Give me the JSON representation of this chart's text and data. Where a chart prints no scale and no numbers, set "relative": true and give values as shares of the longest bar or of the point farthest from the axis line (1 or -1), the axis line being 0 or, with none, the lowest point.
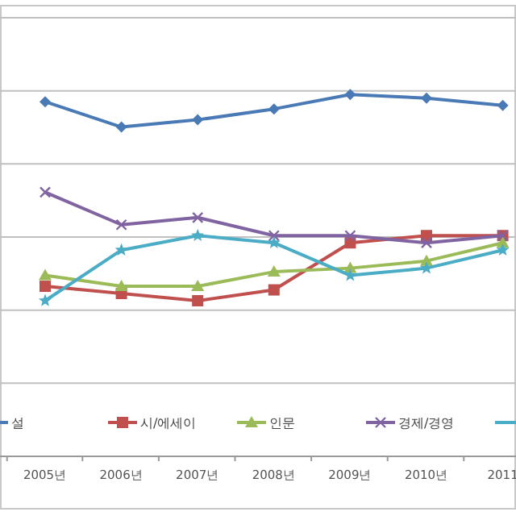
{
  "chart_data": {
    "type": "line",
    "relative": true,
    "categories": [
      "2005년",
      "2006년",
      "2007년",
      "2008년",
      "2009년",
      "2010년",
      "2011"
    ],
    "series": [
      {
        "name": "설",
        "color": "#4a7ab5",
        "marker": "diamond",
        "values": [
          0.98,
          0.91,
          0.93,
          0.96,
          1.0,
          0.99,
          0.97
        ]
      },
      {
        "name": "시/에세이",
        "color": "#c0504d",
        "marker": "square",
        "values": [
          0.47,
          0.45,
          0.43,
          0.46,
          0.59,
          0.61,
          0.61
        ]
      },
      {
        "name": "인문",
        "color": "#9bbb59",
        "marker": "triangle",
        "values": [
          0.5,
          0.47,
          0.47,
          0.51,
          0.52,
          0.54,
          0.59
        ]
      },
      {
        "name": "경제/경영",
        "color": "#8064a2",
        "marker": "cross",
        "values": [
          0.73,
          0.64,
          0.66,
          0.61,
          0.61,
          0.59,
          0.61
        ]
      },
      {
        "color": "#4bacc6",
        "marker": "star",
        "values": [
          0.43,
          0.57,
          0.61,
          0.59,
          0.5,
          0.52,
          0.57
        ]
      }
    ],
    "grid": "y",
    "legend": "bottom",
    "line_style": "solid"
  }
}
